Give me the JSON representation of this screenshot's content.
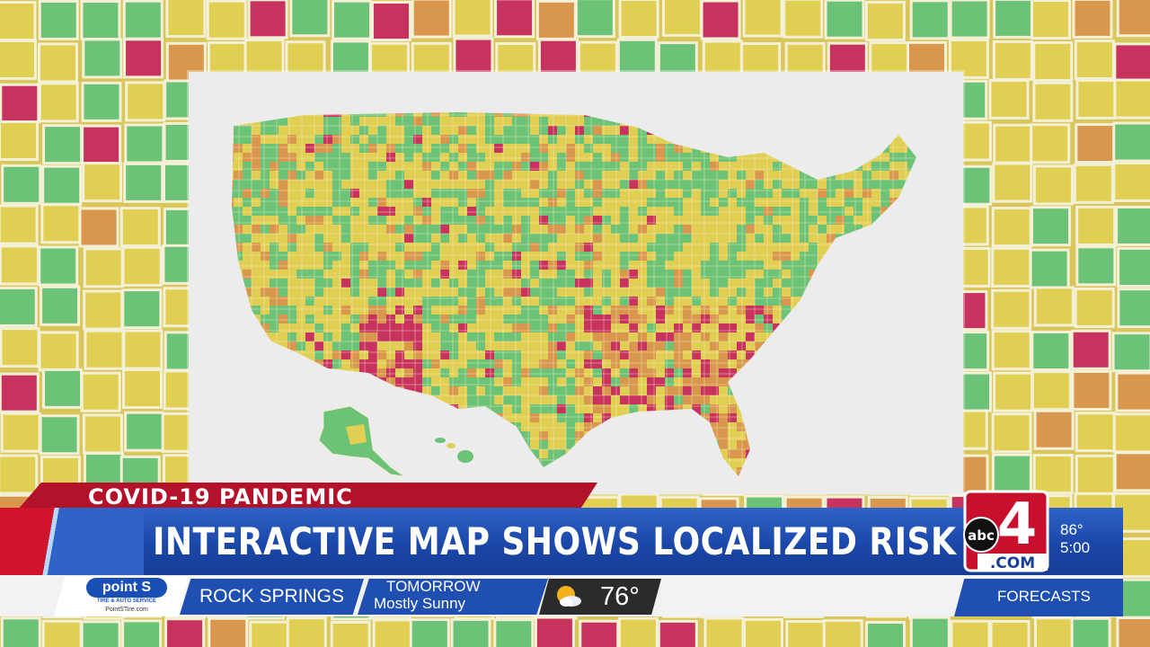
{
  "lower_third": {
    "category": "COVID-19 PANDEMIC",
    "headline": "INTERACTIVE MAP SHOWS LOCALIZED RISK"
  },
  "station": {
    "network": "abc",
    "channel": "4",
    "domain": ".COM"
  },
  "clock": {
    "temperature": "86°",
    "time": "5:00"
  },
  "ticker": {
    "sponsor_name": "point S",
    "sponsor_tagline": "TIRE & AUTO SERVICE",
    "sponsor_url": "PointSTire.com",
    "location": "ROCK SPRINGS",
    "forecast_label": "TOMORROW",
    "forecast_condition": "Mostly Sunny",
    "forecast_temp": "76°",
    "forecast_icon": "partly-sunny-icon",
    "section_label": "FORECASTS"
  },
  "colors": {
    "risk_green": "#6cc276",
    "risk_yellow": "#e0cf52",
    "risk_orange": "#d8974c",
    "risk_red": "#c8325f",
    "brand_blue": "#1f4fb0",
    "brand_red": "#b3122a"
  }
}
